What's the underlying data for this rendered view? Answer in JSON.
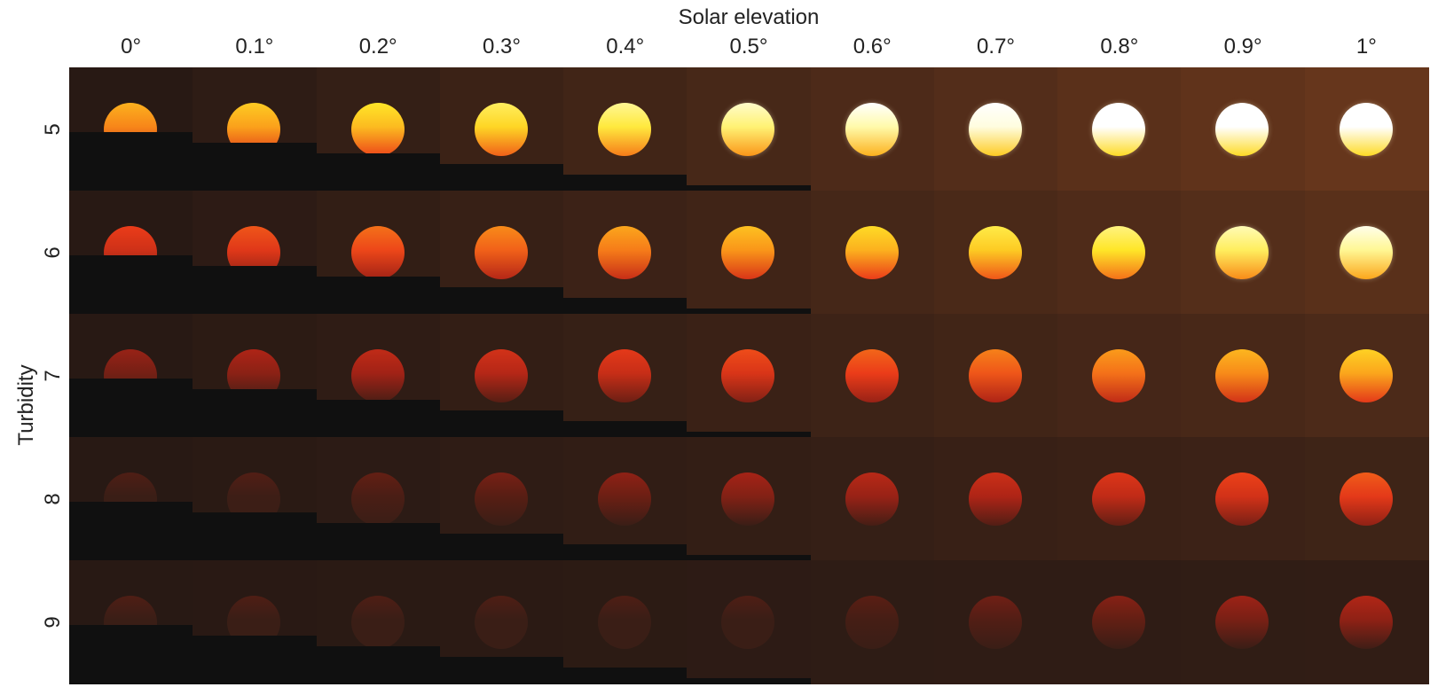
{
  "figure": {
    "top_title": "Solar elevation",
    "side_title": "Turbidity",
    "elevations": [
      "0°",
      "0.1°",
      "0.2°",
      "0.3°",
      "0.4°",
      "0.5°",
      "0.6°",
      "0.7°",
      "0.8°",
      "0.9°",
      "1°"
    ],
    "turbidities": [
      "5",
      "6",
      "7",
      "8",
      "9"
    ]
  }
}
